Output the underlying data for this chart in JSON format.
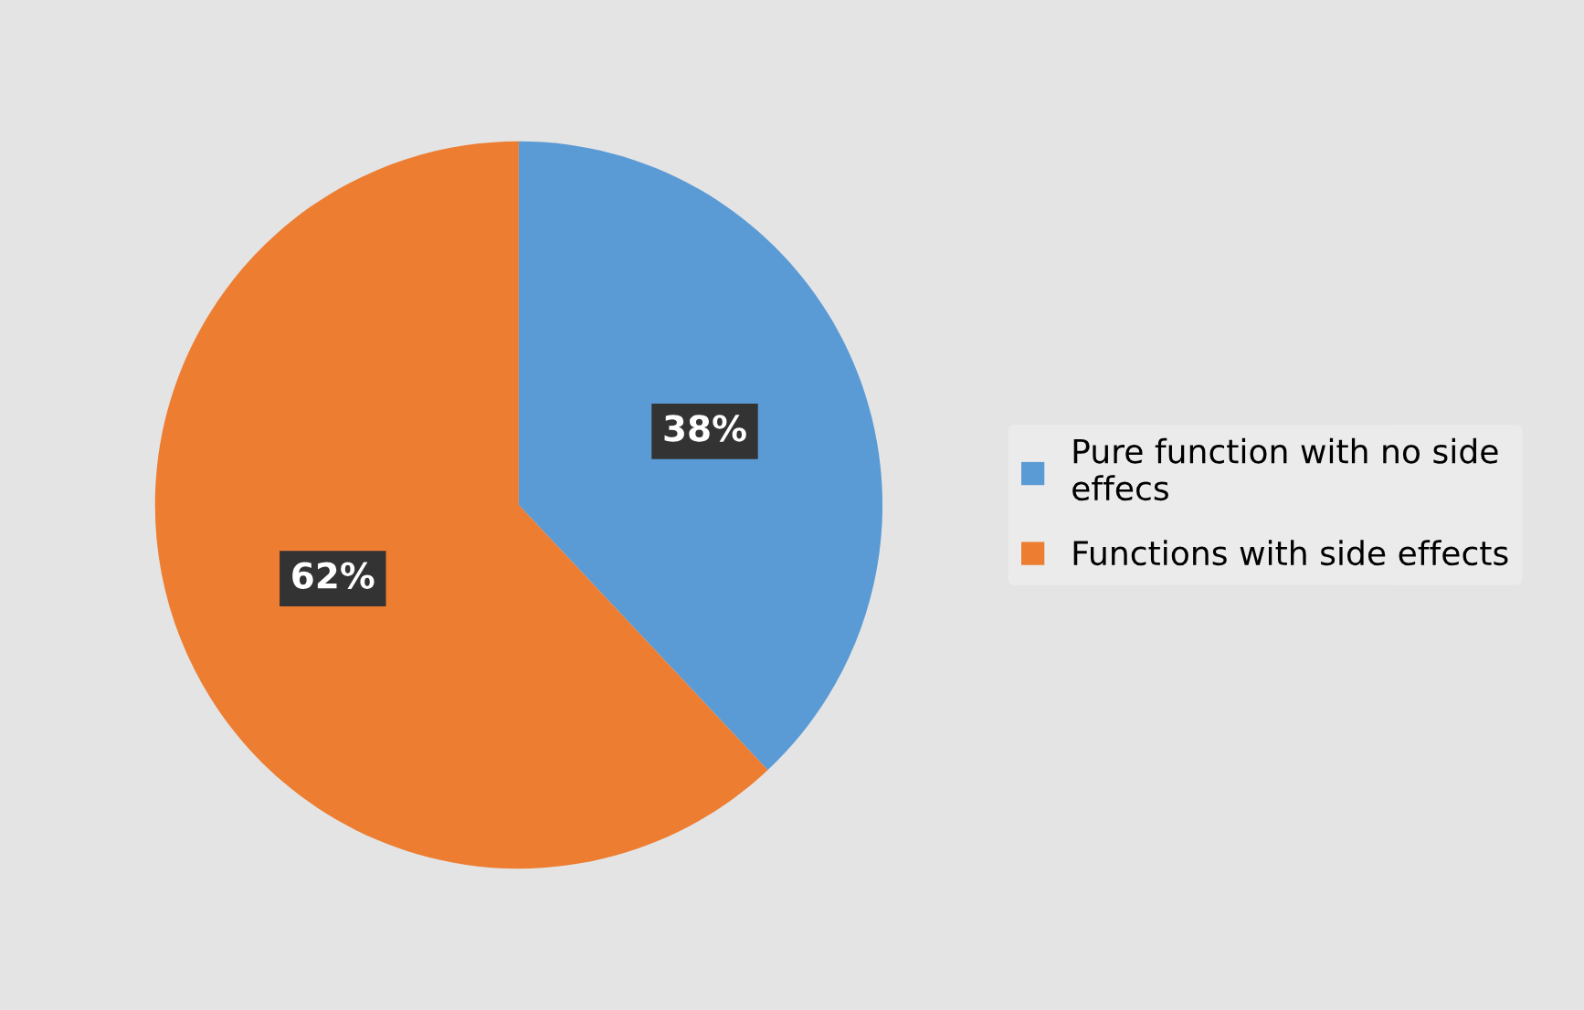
{
  "chart_data": {
    "type": "pie",
    "categories": [
      "Pure function with no side effecs",
      "Functions with side effects"
    ],
    "values": [
      38,
      62
    ],
    "colors": [
      "#5b9bd5",
      "#ed7d31"
    ],
    "value_labels": [
      "38%",
      "62%"
    ],
    "legend": "right"
  }
}
